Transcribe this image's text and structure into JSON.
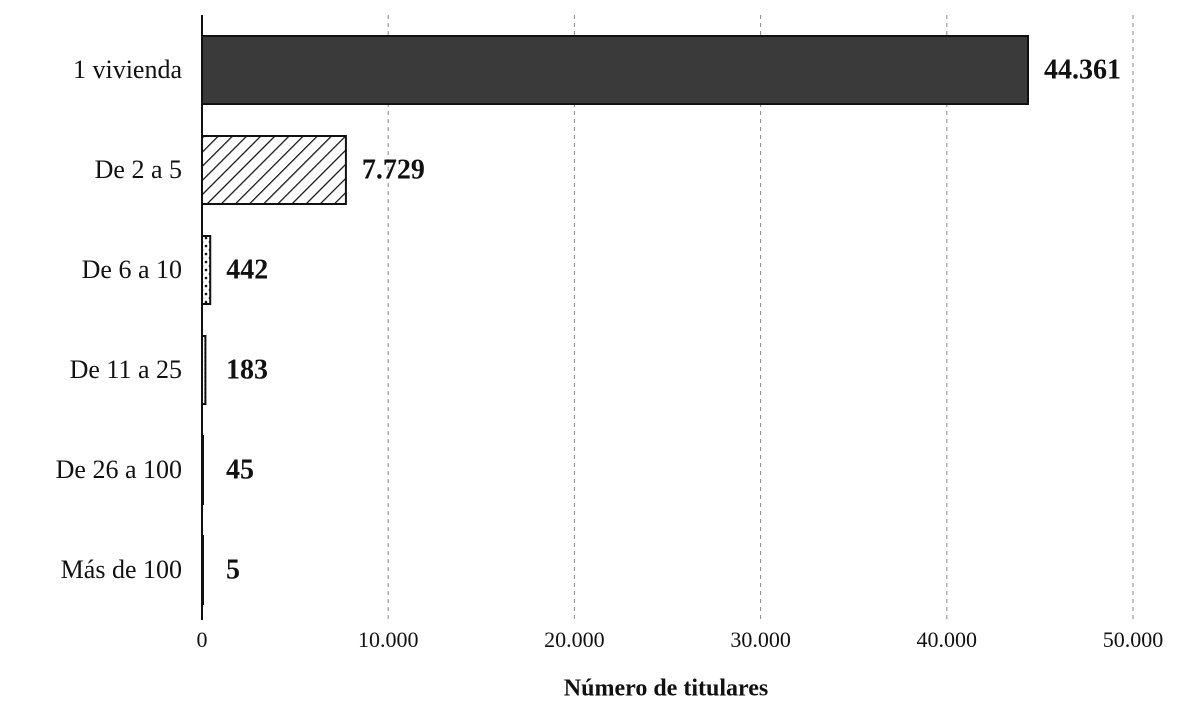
{
  "chart_data": {
    "type": "hbar",
    "categories": [
      "1 vivienda",
      "De 2 a 5",
      "De 6 a 10",
      "De 11 a 25",
      "De 26 a 100",
      "Más de 100"
    ],
    "values": [
      44361,
      7729,
      442,
      183,
      45,
      5
    ],
    "value_labels": [
      "44.361",
      "7.729",
      "442",
      "183",
      "45",
      "5"
    ],
    "colors": [
      "#3a3a3a",
      "#ffffff",
      "#ffffff",
      "#ffffff",
      "#ffffff",
      "#ffffff"
    ],
    "patterns": [
      "solid",
      "hatch",
      "dots",
      "fine-dots",
      "plain",
      "plain"
    ],
    "xlabel": "Número de titulares",
    "xlim": [
      0,
      50000
    ],
    "xticks": [
      0,
      {
        "value": 10000,
        "label": "10.000"
      },
      {
        "value": 20000,
        "label": "20.000"
      },
      {
        "value": 30000,
        "label": "30.000"
      },
      {
        "value": 40000,
        "label": "40.000"
      },
      {
        "value": 50000,
        "label": "50.000"
      }
    ],
    "grid": true
  }
}
